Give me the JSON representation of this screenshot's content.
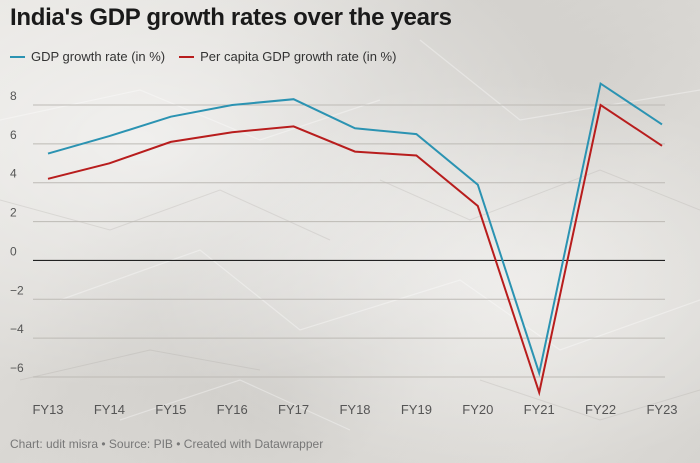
{
  "title": "India's GDP growth rates over the years",
  "footer": "Chart: udit misra • Source: PIB • Created with Datawrapper",
  "colors": {
    "gdp": "#2b93b2",
    "per_capita": "#b81d1d",
    "zero_line": "#222222",
    "grid": "#bdbab5",
    "tick_text": "#555555"
  },
  "chart_data": {
    "type": "line",
    "title": "India's GDP growth rates over the years",
    "xlabel": "",
    "ylabel": "",
    "categories": [
      "FY13",
      "FY14",
      "FY15",
      "FY16",
      "FY17",
      "FY18",
      "FY19",
      "FY20",
      "FY21",
      "FY22",
      "FY23"
    ],
    "ylim": [
      -7,
      9
    ],
    "yticks": [
      8,
      6,
      4,
      2,
      0,
      -2,
      -4,
      -6
    ],
    "ytick_labels": [
      "8",
      "6",
      "4",
      "2",
      "0",
      "−2",
      "−4",
      "−6"
    ],
    "grid": true,
    "legend_position": "top-left",
    "series": [
      {
        "name": "GDP growth rate (in %)",
        "color": "#2b93b2",
        "values": [
          5.5,
          6.4,
          7.4,
          8.0,
          8.3,
          6.8,
          6.5,
          3.9,
          -5.8,
          9.1,
          7.0
        ]
      },
      {
        "name": "Per capita GDP growth rate (in %)",
        "color": "#b81d1d",
        "values": [
          4.2,
          5.0,
          6.1,
          6.6,
          6.9,
          5.6,
          5.4,
          2.8,
          -6.8,
          8.0,
          5.9
        ]
      }
    ]
  }
}
